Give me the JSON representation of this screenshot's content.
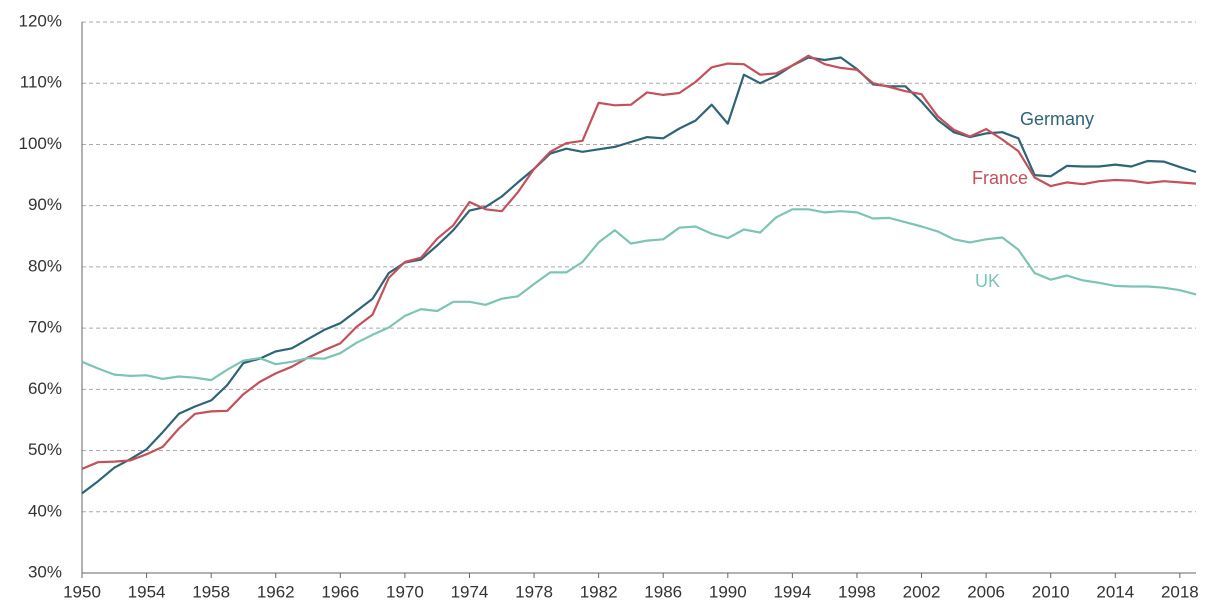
{
  "chart_data": {
    "type": "line",
    "x": [
      1950,
      1951,
      1952,
      1953,
      1954,
      1955,
      1956,
      1957,
      1958,
      1959,
      1960,
      1961,
      1962,
      1963,
      1964,
      1965,
      1966,
      1967,
      1968,
      1969,
      1970,
      1971,
      1972,
      1973,
      1974,
      1975,
      1976,
      1977,
      1978,
      1979,
      1980,
      1981,
      1982,
      1983,
      1984,
      1985,
      1986,
      1987,
      1988,
      1989,
      1990,
      1991,
      1992,
      1993,
      1994,
      1995,
      1996,
      1997,
      1998,
      1999,
      2000,
      2001,
      2002,
      2003,
      2004,
      2005,
      2006,
      2007,
      2008,
      2009,
      2010,
      2011,
      2012,
      2013,
      2014,
      2015,
      2016,
      2017,
      2018,
      2019
    ],
    "series": [
      {
        "name": "Germany",
        "color": "#2e6478",
        "values": [
          43,
          45,
          47.2,
          48.6,
          50.2,
          53,
          56,
          57.2,
          58.2,
          60.7,
          64.3,
          65,
          66.2,
          66.7,
          68.2,
          69.7,
          70.8,
          72.8,
          74.8,
          79,
          80.7,
          81.2,
          83.5,
          86,
          89.2,
          89.8,
          91.5,
          93.8,
          96,
          98.5,
          99.3,
          98.8,
          99.2,
          99.6,
          100.4,
          101.2,
          101,
          102.6,
          103.9,
          106.5,
          103.4,
          111.4,
          110,
          111.2,
          112.9,
          114.2,
          113.8,
          114.2,
          112.3,
          109.8,
          109.5,
          109.5,
          107,
          104,
          102,
          101.2,
          101.8,
          102,
          101,
          95,
          94.8,
          96.5,
          96.4,
          96.4,
          96.7,
          96.4,
          97.3,
          97.2,
          96.3,
          95.5
        ]
      },
      {
        "name": "France",
        "color": "#c4505a",
        "values": [
          47,
          48.1,
          48.2,
          48.4,
          49.4,
          50.6,
          53.6,
          56,
          56.4,
          56.5,
          59.2,
          61.2,
          62.6,
          63.7,
          65.2,
          66.4,
          67.5,
          70.2,
          72.2,
          78.2,
          80.8,
          81.5,
          84.6,
          86.8,
          90.6,
          89.4,
          89.1,
          92.2,
          96,
          98.8,
          100.2,
          100.6,
          106.8,
          106.4,
          106.5,
          108.5,
          108.1,
          108.4,
          110.2,
          112.6,
          113.2,
          113.1,
          111.4,
          111.6,
          112.9,
          114.5,
          113.1,
          112.5,
          112.2,
          110,
          109.4,
          108.7,
          108.2,
          104.6,
          102.4,
          101.3,
          102.5,
          100.8,
          98.9,
          94.6,
          93.2,
          93.8,
          93.5,
          94,
          94.2,
          94.1,
          93.7,
          94,
          93.8,
          93.6
        ]
      },
      {
        "name": "UK",
        "color": "#7cc4b4",
        "values": [
          64.5,
          63.4,
          62.4,
          62.2,
          62.3,
          61.7,
          62.1,
          61.9,
          61.5,
          63.2,
          64.7,
          65.1,
          64.1,
          64.5,
          65.1,
          65,
          65.9,
          67.6,
          68.9,
          70.1,
          72,
          73.1,
          72.8,
          74.3,
          74.3,
          73.8,
          74.8,
          75.2,
          77.2,
          79.1,
          79.1,
          80.8,
          84,
          86,
          83.8,
          84.3,
          84.5,
          86.4,
          86.6,
          85.4,
          84.7,
          86.1,
          85.6,
          88.1,
          89.4,
          89.4,
          88.9,
          89.1,
          88.9,
          87.9,
          88,
          87.3,
          86.6,
          85.8,
          84.5,
          84,
          84.5,
          84.8,
          82.8,
          79,
          77.9,
          78.6,
          77.8,
          77.4,
          76.9,
          76.8,
          76.8,
          76.6,
          76.2,
          75.5
        ]
      }
    ],
    "xlim": [
      1950,
      2019
    ],
    "xticks": [
      1950,
      1954,
      1958,
      1962,
      1966,
      1970,
      1974,
      1978,
      1982,
      1986,
      1990,
      1994,
      1998,
      2002,
      2006,
      2010,
      2014,
      2018
    ],
    "ylim": [
      30,
      120
    ],
    "yticks": [
      {
        "value": 30,
        "label": "30%"
      },
      {
        "value": 40,
        "label": "40%"
      },
      {
        "value": 50,
        "label": "50%"
      },
      {
        "value": 60,
        "label": "60%"
      },
      {
        "value": 70,
        "label": "70%"
      },
      {
        "value": 80,
        "label": "80%"
      },
      {
        "value": 90,
        "label": "90%"
      },
      {
        "value": 100,
        "label": "100%"
      },
      {
        "value": 110,
        "label": "110%"
      },
      {
        "value": 120,
        "label": "120%"
      }
    ],
    "grid": true
  }
}
